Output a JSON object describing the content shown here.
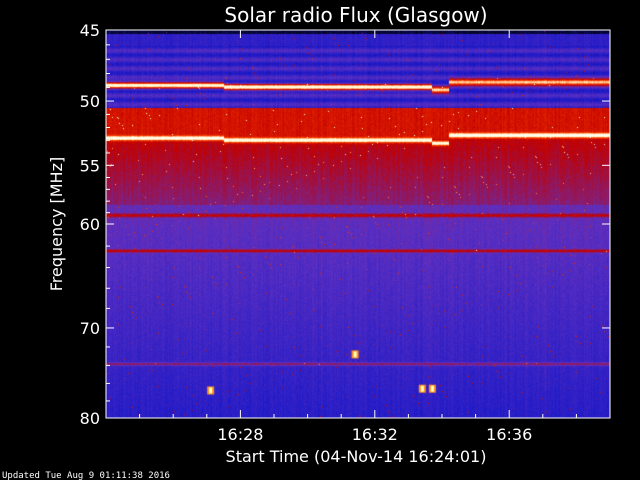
{
  "chart_data": {
    "type": "heatmap",
    "title": "Solar radio Flux (Glasgow)",
    "xlabel": "Start Time (04-Nov-14 16:24:01)",
    "ylabel": "Frequency [MHz]",
    "x_ticks": [
      "16:28",
      "16:32",
      "16:36"
    ],
    "x_tick_minutes": [
      4.0,
      8.0,
      12.0
    ],
    "x_range_minutes": [
      0,
      15
    ],
    "y_ticks": [
      45,
      50,
      55,
      60,
      70,
      80
    ],
    "y_range": [
      45,
      80
    ],
    "y_scale": "log",
    "colormap": [
      "#000000",
      "#1818c8",
      "#6030c0",
      "#c00000",
      "#ff4000",
      "#ffffd0",
      "#ffffff"
    ],
    "bright_bands_mhz": [
      48.8,
      52.8,
      59.2,
      62.4,
      73.8
    ],
    "segment_boundaries_minutes": [
      3.5,
      9.7,
      10.2
    ],
    "bursts": [
      {
        "t_minutes": 3.1,
        "f_mhz": 76.8
      },
      {
        "t_minutes": 9.4,
        "f_mhz": 76.6
      },
      {
        "t_minutes": 9.7,
        "f_mhz": 76.6
      },
      {
        "t_minutes": 7.4,
        "f_mhz": 72.8
      }
    ]
  },
  "footer": {
    "updated": "Updated Tue Aug  9 01:11:38 2016"
  }
}
